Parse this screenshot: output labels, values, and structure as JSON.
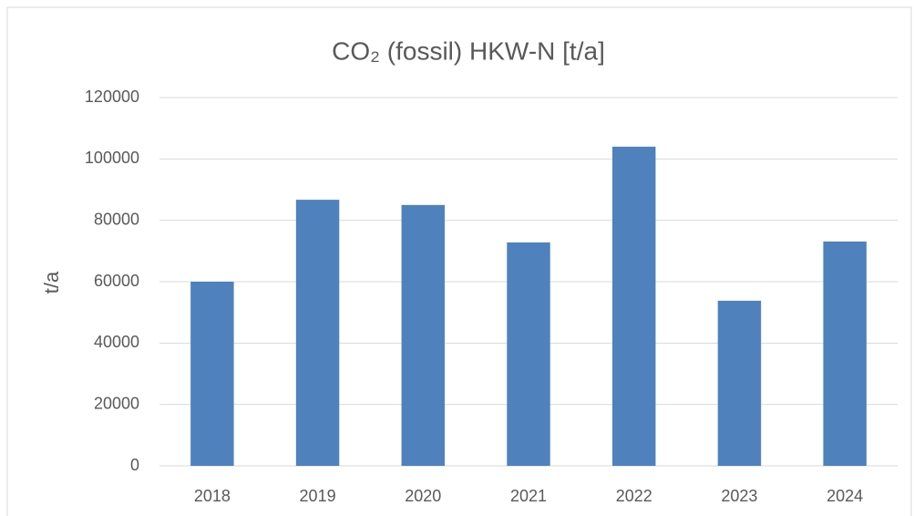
{
  "chart_data": {
    "type": "bar",
    "title": "CO₂ (fossil) HKW-N [t/a]",
    "y_label": "t/a",
    "categories": [
      "2018",
      "2019",
      "2020",
      "2021",
      "2022",
      "2023",
      "2024"
    ],
    "values": [
      60000,
      86700,
      85000,
      72800,
      104000,
      53800,
      73100
    ],
    "color": "#4f81bd",
    "ylim": [
      0,
      120000
    ],
    "yticks": [
      0,
      20000,
      40000,
      60000,
      80000,
      100000,
      120000
    ],
    "grid": true
  }
}
